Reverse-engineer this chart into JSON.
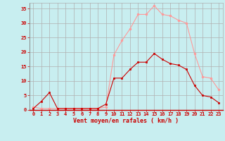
{
  "x": [
    0,
    1,
    2,
    3,
    4,
    5,
    6,
    7,
    8,
    9,
    10,
    11,
    12,
    13,
    14,
    15,
    16,
    17,
    18,
    19,
    20,
    21,
    22,
    23
  ],
  "wind_mean": [
    0.5,
    3.0,
    6.0,
    0.5,
    0.5,
    0.5,
    0.5,
    0.5,
    0.5,
    2.0,
    11.0,
    11.0,
    14.0,
    16.5,
    16.5,
    19.5,
    17.5,
    16.0,
    15.5,
    14.0,
    8.5,
    5.0,
    4.5,
    2.5
  ],
  "wind_gust": [
    1.0,
    0.5,
    0.5,
    0.5,
    0.5,
    0.5,
    0.5,
    0.5,
    0.5,
    1.0,
    19.0,
    24.0,
    28.0,
    33.0,
    33.0,
    36.0,
    33.0,
    32.5,
    31.0,
    30.0,
    19.5,
    11.5,
    11.0,
    7.0
  ],
  "mean_color": "#cc0000",
  "gust_color": "#ff9999",
  "bg_color": "#c8eef0",
  "grid_color": "#b0b0b0",
  "xlabel": "Vent moyen/en rafales ( km/h )",
  "xlabel_color": "#cc0000",
  "tick_color": "#cc0000",
  "ylim": [
    0,
    37
  ],
  "yticks": [
    0,
    5,
    10,
    15,
    20,
    25,
    30,
    35
  ],
  "xticks": [
    0,
    1,
    2,
    3,
    4,
    5,
    6,
    7,
    8,
    9,
    10,
    11,
    12,
    13,
    14,
    15,
    16,
    17,
    18,
    19,
    20,
    21,
    22,
    23
  ],
  "tick_fontsize": 5,
  "xlabel_fontsize": 6,
  "marker_size": 2,
  "line_width": 0.8
}
